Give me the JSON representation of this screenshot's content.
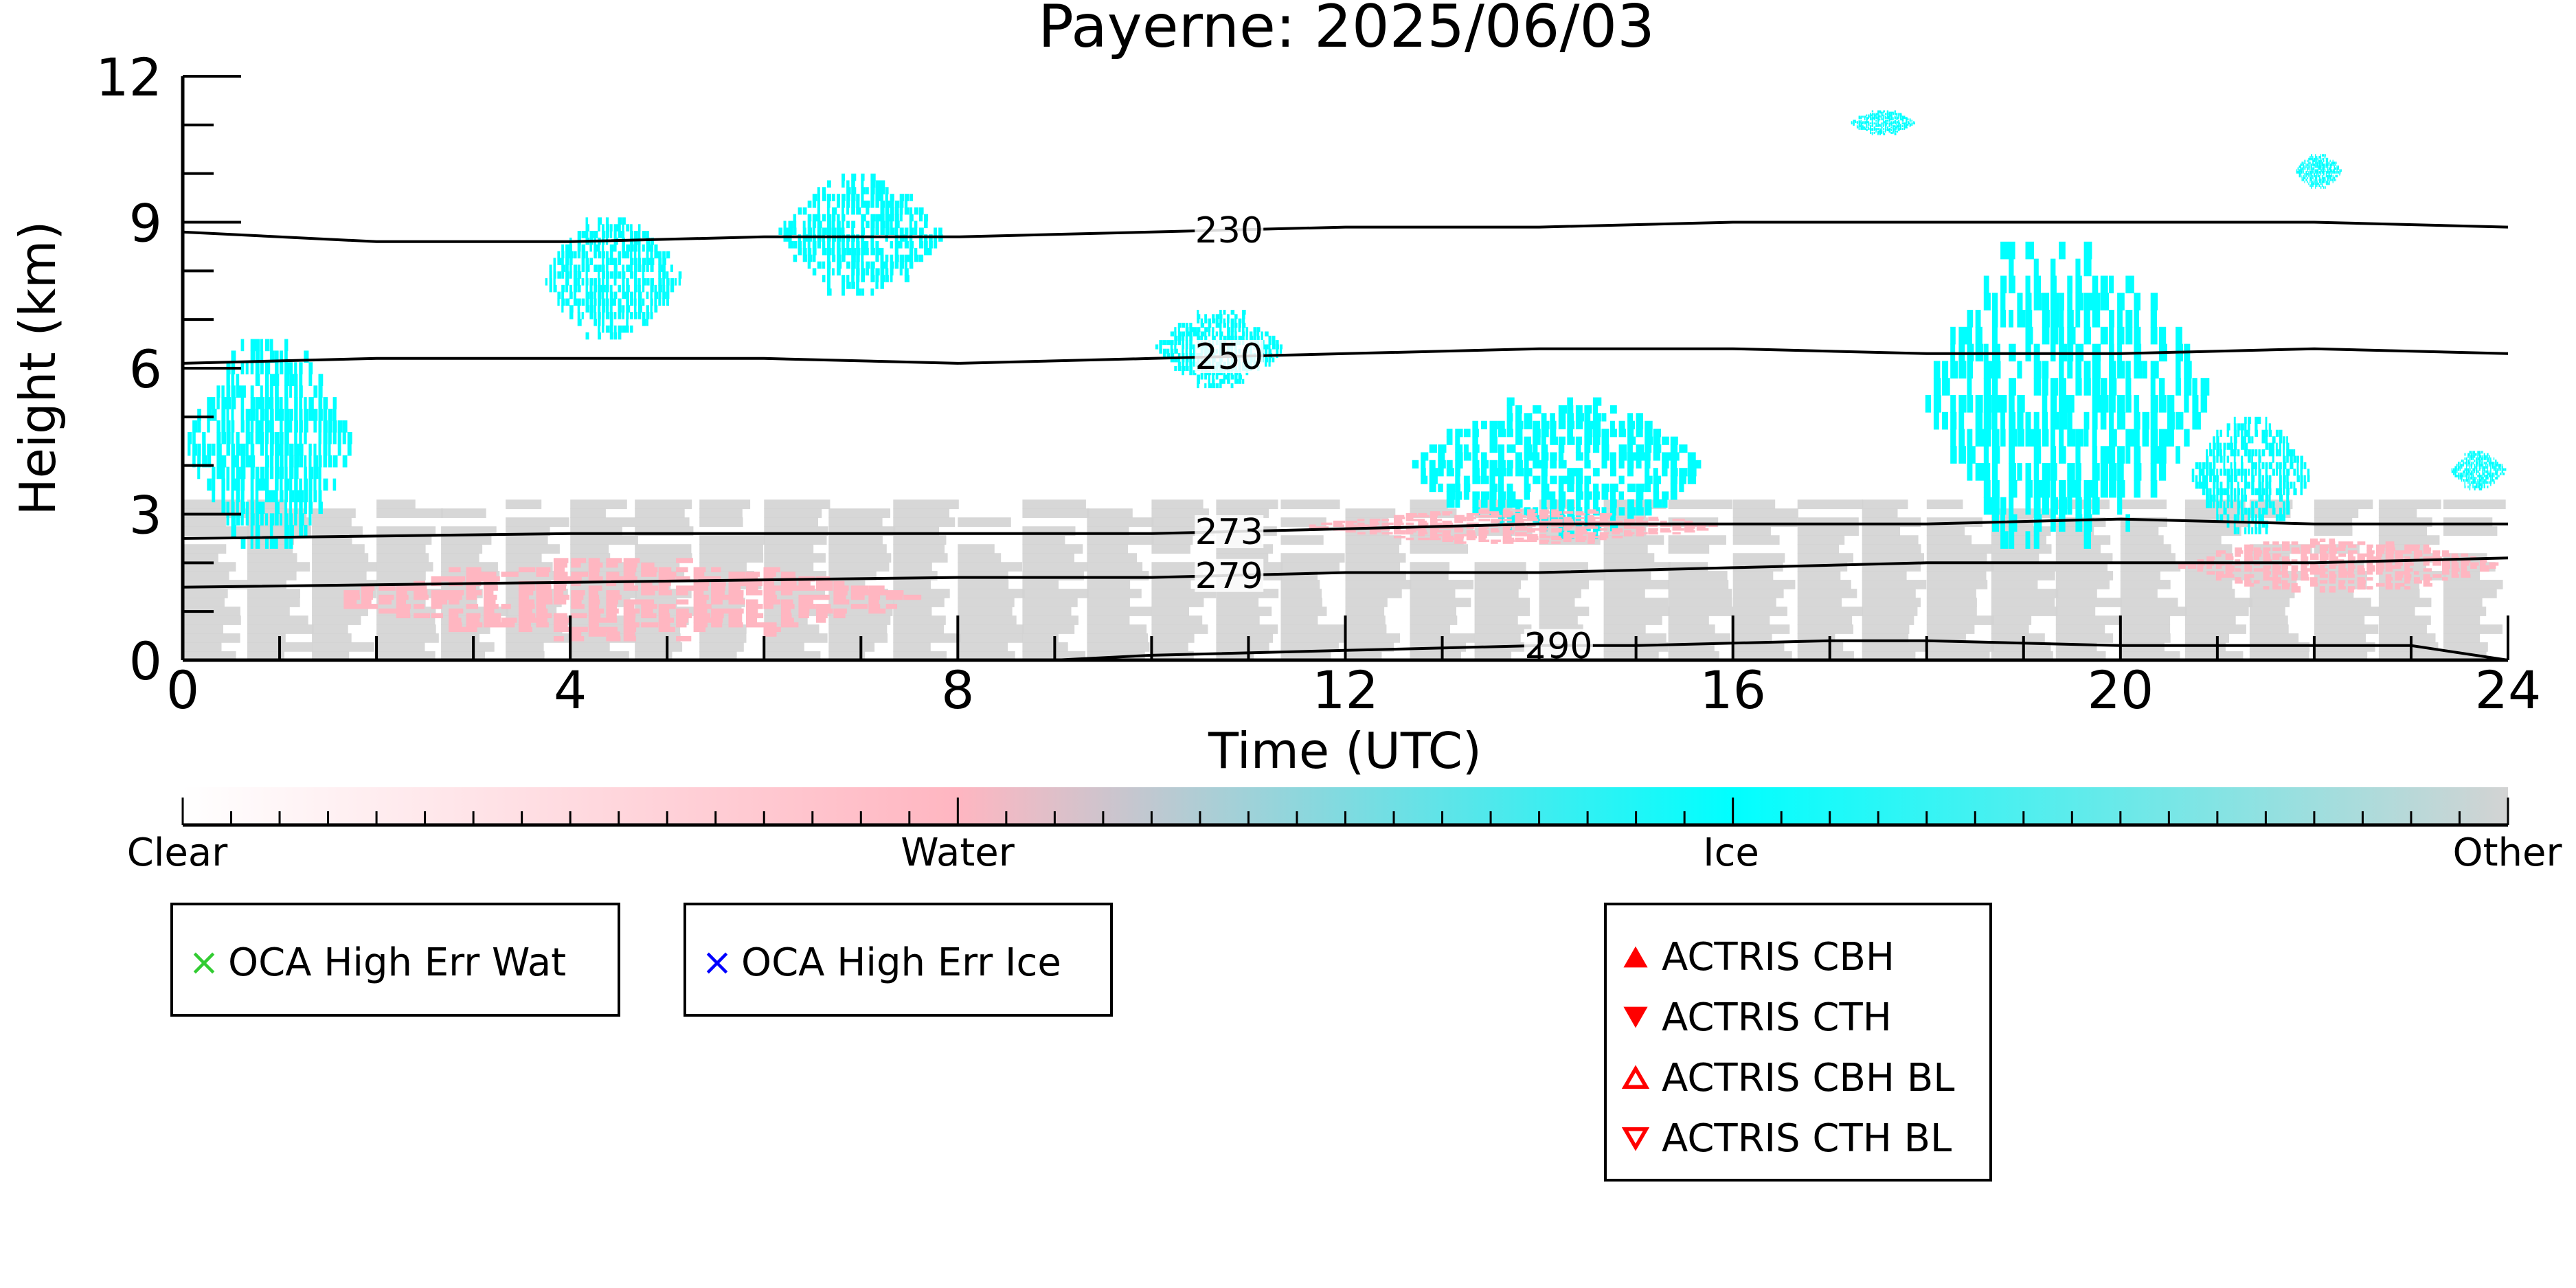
{
  "chart_data": {
    "type": "heatmap",
    "title": "Payerne: 2025/06/03",
    "xlabel": "Time (UTC)",
    "ylabel": "Height (km)",
    "xlim": [
      0,
      24
    ],
    "ylim": [
      0,
      12
    ],
    "x_ticks": [
      "0",
      "4",
      "8",
      "12",
      "16",
      "20",
      "24"
    ],
    "y_ticks": [
      "0",
      "3",
      "6",
      "9",
      "12"
    ],
    "colorbar": {
      "labels": [
        "Clear",
        "Water",
        "Ice",
        "Other"
      ],
      "colors": [
        "#ffffff",
        "#ffb6c1",
        "#00ffff",
        "#d3d3d3"
      ]
    },
    "contours": [
      {
        "label": "230",
        "points": [
          [
            0,
            8.8
          ],
          [
            2,
            8.6
          ],
          [
            4,
            8.6
          ],
          [
            6,
            8.7
          ],
          [
            8,
            8.7
          ],
          [
            10,
            8.8
          ],
          [
            12,
            8.9
          ],
          [
            14,
            8.9
          ],
          [
            16,
            9.0
          ],
          [
            18,
            9.0
          ],
          [
            20,
            9.0
          ],
          [
            22,
            9.0
          ],
          [
            24,
            8.9
          ]
        ]
      },
      {
        "label": "250",
        "points": [
          [
            0,
            6.1
          ],
          [
            2,
            6.2
          ],
          [
            4,
            6.2
          ],
          [
            6,
            6.2
          ],
          [
            8,
            6.1
          ],
          [
            10,
            6.2
          ],
          [
            12,
            6.3
          ],
          [
            14,
            6.4
          ],
          [
            16,
            6.4
          ],
          [
            18,
            6.3
          ],
          [
            20,
            6.3
          ],
          [
            22,
            6.4
          ],
          [
            24,
            6.3
          ]
        ]
      },
      {
        "label": "273",
        "points": [
          [
            0,
            2.5
          ],
          [
            4,
            2.6
          ],
          [
            8,
            2.6
          ],
          [
            10,
            2.6
          ],
          [
            12,
            2.7
          ],
          [
            14,
            2.8
          ],
          [
            16,
            2.8
          ],
          [
            18,
            2.8
          ],
          [
            20,
            2.9
          ],
          [
            22,
            2.8
          ],
          [
            24,
            2.8
          ]
        ]
      },
      {
        "label": "279",
        "points": [
          [
            0,
            1.5
          ],
          [
            4,
            1.6
          ],
          [
            8,
            1.7
          ],
          [
            10,
            1.7
          ],
          [
            12,
            1.8
          ],
          [
            14,
            1.8
          ],
          [
            16,
            1.9
          ],
          [
            18,
            2.0
          ],
          [
            20,
            2.0
          ],
          [
            22,
            2.0
          ],
          [
            24,
            2.1
          ]
        ]
      },
      {
        "label": "290",
        "points": [
          [
            9,
            0.0
          ],
          [
            10,
            0.1
          ],
          [
            12,
            0.2
          ],
          [
            14,
            0.3
          ],
          [
            15,
            0.3
          ],
          [
            17,
            0.4
          ],
          [
            18,
            0.4
          ],
          [
            20,
            0.3
          ],
          [
            22,
            0.3
          ],
          [
            23,
            0.3
          ],
          [
            24,
            0.0
          ]
        ]
      }
    ],
    "regions": [
      {
        "type": "Ice",
        "x": [
          0.0,
          1.8
        ],
        "y": [
          2.3,
          6.6
        ]
      },
      {
        "type": "Ice",
        "x": [
          3.7,
          5.2
        ],
        "y": [
          6.6,
          9.1
        ]
      },
      {
        "type": "Ice",
        "x": [
          6.1,
          7.9
        ],
        "y": [
          7.5,
          10.0
        ]
      },
      {
        "type": "Ice",
        "x": [
          10.0,
          11.4
        ],
        "y": [
          5.6,
          7.2
        ]
      },
      {
        "type": "Ice",
        "x": [
          12.6,
          15.8
        ],
        "y": [
          2.5,
          5.4
        ]
      },
      {
        "type": "Ice",
        "x": [
          17.9,
          21.0
        ],
        "y": [
          2.3,
          8.6
        ]
      },
      {
        "type": "Ice",
        "x": [
          20.7,
          22.0
        ],
        "y": [
          2.6,
          5.0
        ]
      },
      {
        "type": "Ice",
        "x": [
          23.4,
          24.0
        ],
        "y": [
          3.5,
          4.3
        ]
      },
      {
        "type": "Ice",
        "x": [
          17.2,
          17.9
        ],
        "y": [
          10.8,
          11.3
        ]
      },
      {
        "type": "Ice",
        "x": [
          21.8,
          22.3
        ],
        "y": [
          9.7,
          10.4
        ]
      },
      {
        "type": "Water",
        "x": [
          1.3,
          7.8
        ],
        "y": [
          0.4,
          2.1
        ]
      },
      {
        "type": "Water",
        "x": [
          11.5,
          16.0
        ],
        "y": [
          2.4,
          3.1
        ]
      },
      {
        "type": "Water",
        "x": [
          20.5,
          24.0
        ],
        "y": [
          1.4,
          2.5
        ]
      },
      {
        "type": "Other",
        "x": [
          0.0,
          24.0
        ],
        "y": [
          0.0,
          3.3
        ]
      }
    ]
  },
  "legends": {
    "oca": [
      {
        "label": "OCA High Err Wat",
        "color": "#33cc33",
        "symbol": "×"
      },
      {
        "label": "OCA High Err Ice",
        "color": "#0000ff",
        "symbol": "×"
      }
    ],
    "actris": [
      {
        "label": "ACTRIS CBH",
        "color": "#ff0000",
        "marker": "triangle-up-filled"
      },
      {
        "label": "ACTRIS CTH",
        "color": "#ff0000",
        "marker": "triangle-down-filled"
      },
      {
        "label": "ACTRIS CBH BL",
        "color": "#ff0000",
        "marker": "triangle-up-open"
      },
      {
        "label": "ACTRIS CTH BL",
        "color": "#ff0000",
        "marker": "triangle-down-open"
      }
    ]
  }
}
